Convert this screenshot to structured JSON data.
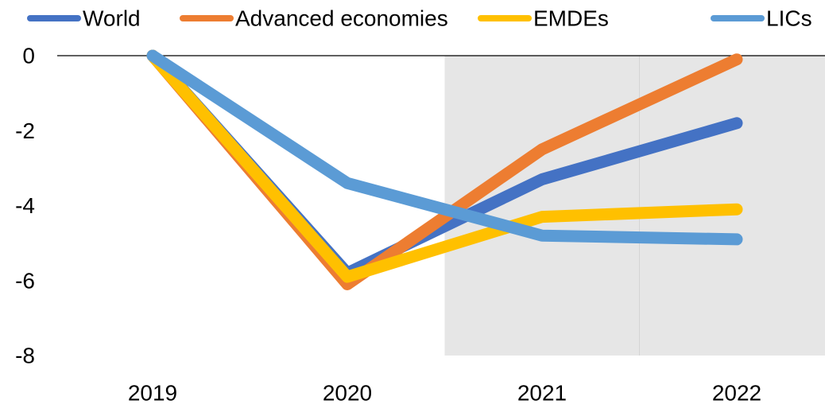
{
  "chart_data": {
    "type": "line",
    "title": "",
    "xlabel": "",
    "ylabel": "",
    "categories": [
      "2019",
      "2020",
      "2021",
      "2022"
    ],
    "ylim": [
      -8,
      0
    ],
    "yticks": [
      0,
      -2,
      -4,
      -6,
      -8
    ],
    "ytick_labels": [
      "0",
      "-2",
      "-4",
      "-6",
      "-8"
    ],
    "grid": false,
    "legend_position": "top",
    "shaded_region": {
      "from": "2021",
      "to": "2022",
      "color": "#e6e6e6"
    },
    "series": [
      {
        "name": "World",
        "color": "#4472c4",
        "values": [
          0,
          -5.8,
          -3.3,
          -1.8
        ]
      },
      {
        "name": "Advanced economies",
        "color": "#ed7d31",
        "values": [
          0,
          -6.1,
          -2.5,
          -0.1
        ]
      },
      {
        "name": "EMDEs",
        "color": "#ffc000",
        "values": [
          0,
          -5.9,
          -4.3,
          -4.1
        ]
      },
      {
        "name": "LICs",
        "color": "#5b9bd5",
        "values": [
          0,
          -3.4,
          -4.8,
          -4.9
        ]
      }
    ]
  }
}
